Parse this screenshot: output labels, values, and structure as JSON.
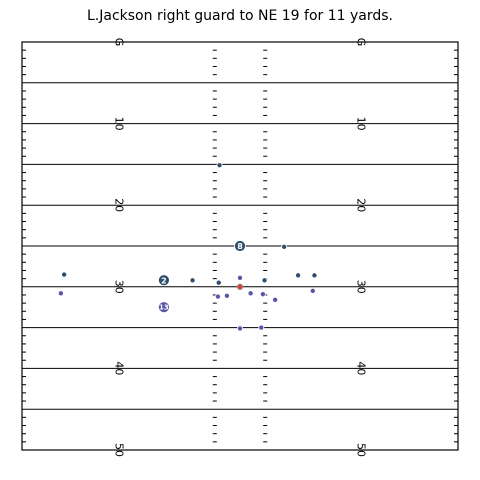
{
  "chart_data": {
    "type": "scatter",
    "title": "L.Jackson right guard to NE 19 for 11 yards.",
    "xlabel": "",
    "ylabel": "",
    "xlim": [
      -26.65,
      26.65
    ],
    "ylim": [
      0,
      50
    ],
    "grid": false,
    "yard_lines": [
      0,
      5,
      10,
      15,
      20,
      25,
      30,
      35,
      40,
      45,
      50
    ],
    "yard_labels": [
      {
        "yard": 0,
        "label": "G"
      },
      {
        "yard": 10,
        "label": "10"
      },
      {
        "yard": 20,
        "label": "20"
      },
      {
        "yard": 30,
        "label": "30"
      },
      {
        "yard": 40,
        "label": "40"
      },
      {
        "yard": 50,
        "label": "50"
      }
    ],
    "colors": {
      "offense": "#2f4f6f",
      "defense": "#5a55a8",
      "ball": "#d94040",
      "ball_edge": "#999999"
    },
    "series": [
      {
        "side": "offense",
        "points": [
          {
            "x": -2.5,
            "y": 15.1,
            "jersey": ""
          },
          {
            "x": 0,
            "y": 25,
            "jersey": "8"
          },
          {
            "x": -9.3,
            "y": 29.2,
            "jersey": "2"
          },
          {
            "x": -5.8,
            "y": 29.2,
            "jersey": ""
          },
          {
            "x": -2.6,
            "y": 29.5,
            "jersey": ""
          },
          {
            "x": 3.0,
            "y": 29.2,
            "jersey": ""
          },
          {
            "x": 7.1,
            "y": 28.6,
            "jersey": ""
          },
          {
            "x": 9.1,
            "y": 28.6,
            "jersey": ""
          },
          {
            "x": -21.5,
            "y": 28.5,
            "jersey": ""
          },
          {
            "x": 5.4,
            "y": 25.1,
            "jersey": ""
          }
        ]
      },
      {
        "side": "defense",
        "points": [
          {
            "x": -9.3,
            "y": 32.5,
            "jersey": "13"
          },
          {
            "x": -2.7,
            "y": 31.2,
            "jersey": ""
          },
          {
            "x": -1.6,
            "y": 31.1,
            "jersey": ""
          },
          {
            "x": 1.3,
            "y": 30.8,
            "jersey": ""
          },
          {
            "x": 2.8,
            "y": 30.9,
            "jersey": ""
          },
          {
            "x": 4.3,
            "y": 31.6,
            "jersey": ""
          },
          {
            "x": 8.9,
            "y": 30.5,
            "jersey": ""
          },
          {
            "x": -21.9,
            "y": 30.8,
            "jersey": ""
          },
          {
            "x": 2.6,
            "y": 35.0,
            "jersey": ""
          },
          {
            "x": 0.0,
            "y": 35.1,
            "jersey": ""
          },
          {
            "x": 0.0,
            "y": 28.9,
            "jersey": ""
          }
        ]
      }
    ],
    "ball": {
      "x": 0.0,
      "y": 30.0
    }
  }
}
